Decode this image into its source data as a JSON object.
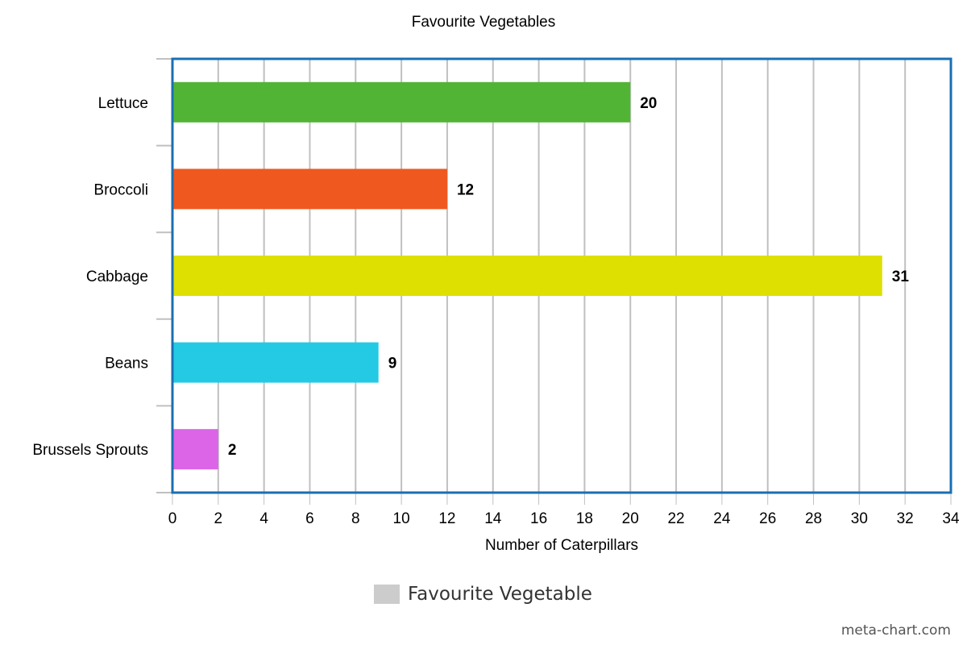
{
  "chart_data": {
    "type": "bar",
    "orientation": "horizontal",
    "title": "Favourite Vegetables",
    "xlabel": "Number of Caterpillars",
    "ylabel": "",
    "xlim": [
      0,
      34
    ],
    "x_ticks": [
      0,
      2,
      4,
      6,
      8,
      10,
      12,
      14,
      16,
      18,
      20,
      22,
      24,
      26,
      28,
      30,
      32,
      34
    ],
    "grid": true,
    "categories": [
      "Lettuce",
      "Broccoli",
      "Cabbage",
      "Beans",
      "Brussels Sprouts"
    ],
    "values": [
      20,
      12,
      31,
      9,
      2
    ],
    "colors": [
      "#52b435",
      "#ef581e",
      "#dde000",
      "#24cae4",
      "#db64e7"
    ],
    "data_labels": [
      "20",
      "12",
      "31",
      "9",
      "2"
    ],
    "legend": {
      "position": "bottom-center",
      "entries": [
        {
          "label": "Favourite Vegetable",
          "color": "#cccccc"
        }
      ]
    },
    "border_color": "#1a6fb3"
  },
  "credit": "meta-chart.com"
}
